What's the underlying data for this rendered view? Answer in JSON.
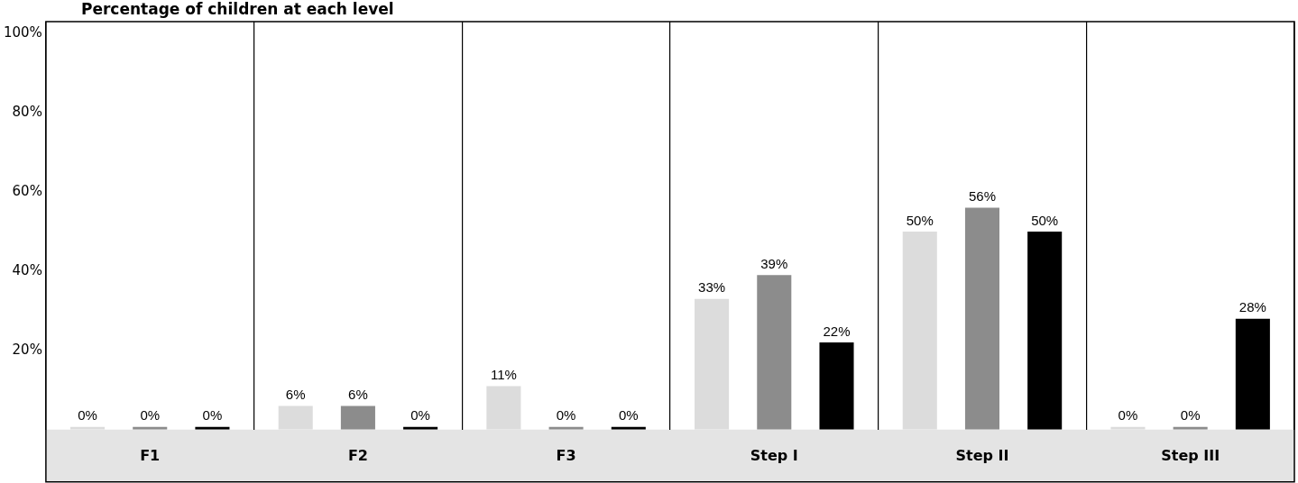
{
  "chart_data": {
    "type": "bar",
    "title": "Percentage of children at each level",
    "categories": [
      "F1",
      "F2",
      "F3",
      "Step I",
      "Step II",
      "Step III"
    ],
    "series": [
      {
        "color": "#dcdcdc",
        "values": [
          0,
          6,
          11,
          33,
          50,
          0
        ],
        "value_labels": [
          "0%",
          "6%",
          "11%",
          "33%",
          "50%",
          "0%"
        ]
      },
      {
        "color": "#8c8c8c",
        "values": [
          0,
          6,
          0,
          39,
          56,
          0
        ],
        "value_labels": [
          "0%",
          "6%",
          "0%",
          "39%",
          "56%",
          "0%"
        ]
      },
      {
        "color": "#000000",
        "values": [
          0,
          0,
          0,
          22,
          50,
          28
        ],
        "value_labels": [
          "0%",
          "0%",
          "0%",
          "22%",
          "50%",
          "28%"
        ]
      }
    ],
    "ylim": [
      0,
      103
    ],
    "yticks": [
      {
        "value": 20,
        "label": "20%"
      },
      {
        "value": 40,
        "label": "40%"
      },
      {
        "value": 60,
        "label": "60%"
      },
      {
        "value": 80,
        "label": "80%"
      },
      {
        "value": 100,
        "label": "100%"
      }
    ],
    "grid": "x",
    "legend": false
  }
}
